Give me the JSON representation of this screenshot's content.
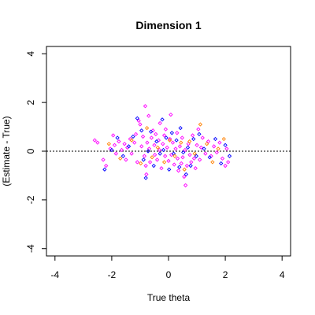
{
  "chart_data": {
    "type": "scatter",
    "title": "Dimension 1",
    "xlabel": "True theta",
    "ylabel": "(Estimate - True)",
    "xlim": [
      -4.3,
      4.3
    ],
    "ylim": [
      -4.3,
      4.3
    ],
    "xticks": [
      -4,
      -2,
      0,
      2,
      4
    ],
    "yticks": [
      -4,
      -2,
      0,
      2,
      4
    ],
    "xtick_labels": [
      "-4",
      "-2",
      "0",
      "2",
      "4"
    ],
    "ytick_labels": [
      "-4",
      "-2",
      "0",
      "2",
      "4"
    ],
    "reference_line": {
      "y": 0,
      "style": "dotted",
      "color": "#000000"
    },
    "grid": false,
    "legend": "none",
    "marker": "diamond-outline",
    "series": [
      {
        "color": "#ff00ff",
        "points": [
          [
            -2.6,
            0.45
          ],
          [
            -2.5,
            0.35
          ],
          [
            -2.3,
            -0.35
          ],
          [
            -2.2,
            -0.6
          ],
          [
            -2.05,
            0.1
          ],
          [
            -1.95,
            0.65
          ],
          [
            -1.9,
            0.25
          ],
          [
            -1.85,
            -0.1
          ],
          [
            -1.75,
            0.4
          ],
          [
            -1.65,
            0.05
          ],
          [
            -1.55,
            0.3
          ],
          [
            -1.5,
            -0.35
          ],
          [
            -1.45,
            0.15
          ],
          [
            -1.35,
            0.5
          ],
          [
            -1.3,
            -0.1
          ],
          [
            -1.2,
            0.35
          ],
          [
            -1.15,
            0.7
          ],
          [
            -1.1,
            -0.45
          ],
          [
            -1.05,
            1.25
          ],
          [
            -1.0,
            1.1
          ],
          [
            -0.95,
            0.2
          ],
          [
            -0.9,
            0.6
          ],
          [
            -0.85,
            -0.2
          ],
          [
            -0.82,
            1.85
          ],
          [
            -0.8,
            -0.6
          ],
          [
            -0.78,
            -0.95
          ],
          [
            -0.75,
            0.35
          ],
          [
            -0.7,
            1.45
          ],
          [
            -0.68,
            0.1
          ],
          [
            -0.65,
            -0.45
          ],
          [
            -0.6,
            0.55
          ],
          [
            -0.55,
            0.85
          ],
          [
            -0.5,
            0.25
          ],
          [
            -0.48,
            -0.15
          ],
          [
            -0.45,
            0.7
          ],
          [
            -0.4,
            -0.35
          ],
          [
            -0.35,
            0.45
          ],
          [
            -0.32,
            0.05
          ],
          [
            -0.3,
            1.15
          ],
          [
            -0.25,
            -0.7
          ],
          [
            -0.2,
            0.3
          ],
          [
            -0.15,
            0.65
          ],
          [
            -0.12,
            -0.2
          ],
          [
            -0.1,
            0.9
          ],
          [
            -0.05,
            0.15
          ],
          [
            0.0,
            -0.4
          ],
          [
            0.05,
            0.5
          ],
          [
            0.08,
            1.5
          ],
          [
            0.1,
            -0.15
          ],
          [
            0.15,
            0.35
          ],
          [
            0.2,
            -0.55
          ],
          [
            0.25,
            0.1
          ],
          [
            0.3,
            0.75
          ],
          [
            0.32,
            -0.3
          ],
          [
            0.35,
            -0.8
          ],
          [
            0.4,
            0.2
          ],
          [
            0.45,
            -0.5
          ],
          [
            0.48,
            0.55
          ],
          [
            0.5,
            -0.25
          ],
          [
            0.55,
            -1.05
          ],
          [
            0.58,
            0.05
          ],
          [
            0.6,
            -1.4
          ],
          [
            0.65,
            -0.6
          ],
          [
            0.7,
            0.3
          ],
          [
            0.75,
            -0.15
          ],
          [
            0.8,
            -0.45
          ],
          [
            0.85,
            0.65
          ],
          [
            0.9,
            -0.3
          ],
          [
            0.95,
            -0.7
          ],
          [
            1.0,
            0.25
          ],
          [
            1.05,
            0.9
          ],
          [
            1.1,
            -0.35
          ],
          [
            1.15,
            0.15
          ],
          [
            1.2,
            0.55
          ],
          [
            1.3,
            -0.1
          ],
          [
            1.4,
            0.4
          ],
          [
            1.5,
            -0.2
          ],
          [
            1.6,
            0.2
          ],
          [
            1.7,
            -0.05
          ],
          [
            1.8,
            0.35
          ],
          [
            1.9,
            -0.3
          ],
          [
            2.0,
            -0.6
          ],
          [
            2.05,
            0.1
          ],
          [
            2.1,
            -0.45
          ]
        ]
      },
      {
        "color": "#0000ff",
        "points": [
          [
            -2.25,
            -0.75
          ],
          [
            -2.0,
            0.05
          ],
          [
            -1.8,
            0.55
          ],
          [
            -1.6,
            -0.2
          ],
          [
            -1.4,
            0.2
          ],
          [
            -1.25,
            0.6
          ],
          [
            -1.1,
            1.35
          ],
          [
            -0.95,
            0.85
          ],
          [
            -0.88,
            -0.35
          ],
          [
            -0.8,
            -1.1
          ],
          [
            -0.72,
            0.0
          ],
          [
            -0.62,
            0.8
          ],
          [
            -0.52,
            -0.6
          ],
          [
            -0.42,
            0.4
          ],
          [
            -0.3,
            -0.1
          ],
          [
            -0.22,
            1.3
          ],
          [
            -0.18,
            0.05
          ],
          [
            -0.08,
            0.55
          ],
          [
            0.02,
            -0.75
          ],
          [
            0.12,
            0.75
          ],
          [
            0.18,
            -0.1
          ],
          [
            0.28,
            0.45
          ],
          [
            0.38,
            -0.65
          ],
          [
            0.42,
            0.95
          ],
          [
            0.52,
            -0.05
          ],
          [
            0.62,
            -0.95
          ],
          [
            0.68,
            0.15
          ],
          [
            0.78,
            -0.6
          ],
          [
            0.88,
            0.5
          ],
          [
            0.98,
            -0.2
          ],
          [
            1.08,
            0.7
          ],
          [
            1.25,
            0.1
          ],
          [
            1.45,
            -0.25
          ],
          [
            1.65,
            0.5
          ],
          [
            1.85,
            -0.5
          ],
          [
            2.0,
            0.25
          ],
          [
            2.15,
            -0.2
          ]
        ]
      },
      {
        "color": "#ff8000",
        "points": [
          [
            -2.1,
            0.3
          ],
          [
            -1.7,
            -0.3
          ],
          [
            -1.3,
            0.45
          ],
          [
            -0.98,
            -0.5
          ],
          [
            -0.76,
            0.95
          ],
          [
            -0.58,
            -0.25
          ],
          [
            -0.38,
            0.15
          ],
          [
            -0.15,
            -0.45
          ],
          [
            0.04,
            0.45
          ],
          [
            0.22,
            -0.2
          ],
          [
            0.44,
            0.35
          ],
          [
            0.56,
            -0.75
          ],
          [
            0.74,
            0.4
          ],
          [
            0.92,
            -0.1
          ],
          [
            1.12,
            1.1
          ],
          [
            1.35,
            0.3
          ],
          [
            1.55,
            -0.45
          ],
          [
            1.75,
            0.1
          ],
          [
            1.95,
            0.5
          ]
        ]
      }
    ]
  }
}
